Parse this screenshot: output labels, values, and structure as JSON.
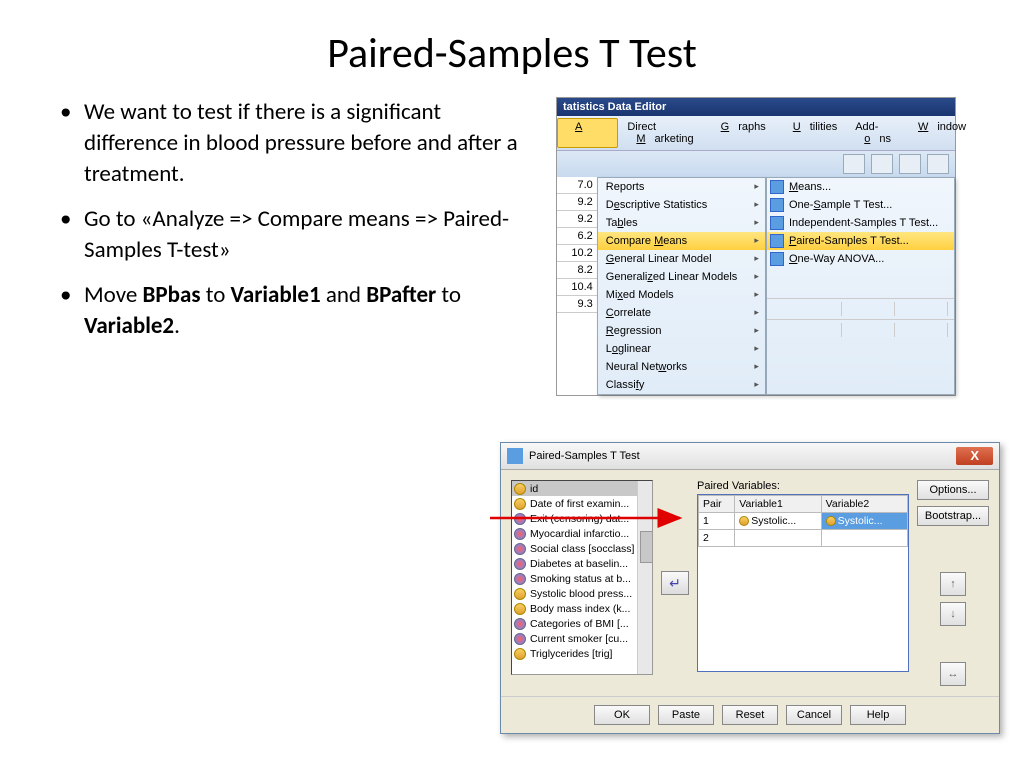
{
  "title": "Paired-Samples T Test",
  "bullets": {
    "b1": "We want to test if there is a significant difference in blood pressure before and after a treatment.",
    "b2_pre": "Go to «Analyze => Compare means => Paired-Samples T-test»",
    "b3_a": "Move ",
    "b3_b": "BPbas",
    "b3_c": " to ",
    "b3_d": "Variable1",
    "b3_e": " and ",
    "b3_f": "BPafter",
    "b3_g": " to ",
    "b3_h": "Variable2",
    "b3_i": "."
  },
  "menubar": {
    "editor_title": "tatistics Data Editor",
    "analyze": "Analyze",
    "direct": "Direct Marketing",
    "graphs": "Graphs",
    "utilities": "Utilities",
    "addons": "Add-ons",
    "window": "Window"
  },
  "menu": {
    "reports": "Reports",
    "desc": "Descriptive Statistics",
    "tables": "Tables",
    "compare": "Compare Means",
    "glm": "General Linear Model",
    "gzlm": "Generalized Linear Models",
    "mixed": "Mixed Models",
    "corr": "Correlate",
    "reg": "Regression",
    "loglin": "Loglinear",
    "neural": "Neural Networks",
    "classify": "Classify"
  },
  "submenu": {
    "means": "Means...",
    "onesample": "One-Sample T Test...",
    "indep": "Independent-Samples T Test...",
    "paired": "Paired-Samples T Test...",
    "anova": "One-Way ANOVA..."
  },
  "datacol": [
    "7.0",
    "9.2",
    "9.2",
    "6.2",
    "10.2",
    "8.2",
    "10.4",
    "9.3"
  ],
  "dialog": {
    "title": "Paired-Samples T Test",
    "close": "X",
    "paired_lbl": "Paired Variables:",
    "headers": {
      "pair": "Pair",
      "v1": "Variable1",
      "v2": "Variable2"
    },
    "rows": [
      {
        "n": "1",
        "v1": "Systolic...",
        "v2": "Systolic..."
      },
      {
        "n": "2",
        "v1": "",
        "v2": ""
      }
    ],
    "options": "Options...",
    "bootstrap": "Bootstrap...",
    "ok": "OK",
    "paste": "Paste",
    "reset": "Reset",
    "cancel": "Cancel",
    "help": "Help"
  },
  "varlist": [
    {
      "t": "scale",
      "l": "id"
    },
    {
      "t": "scale",
      "l": "Date of first examin..."
    },
    {
      "t": "nominal",
      "l": "Exit (censoring) dat..."
    },
    {
      "t": "nominal",
      "l": "Myocardial infarctio..."
    },
    {
      "t": "nominal",
      "l": "Social class [socclass]"
    },
    {
      "t": "nominal",
      "l": "Diabetes at baselin..."
    },
    {
      "t": "nominal",
      "l": "Smoking status at b..."
    },
    {
      "t": "scale",
      "l": "Systolic blood press..."
    },
    {
      "t": "scale",
      "l": "Body mass index (k..."
    },
    {
      "t": "nominal",
      "l": "Categories of BMI [..."
    },
    {
      "t": "nominal",
      "l": "Current smoker [cu..."
    },
    {
      "t": "scale",
      "l": "Triglycerides [trig]"
    }
  ]
}
